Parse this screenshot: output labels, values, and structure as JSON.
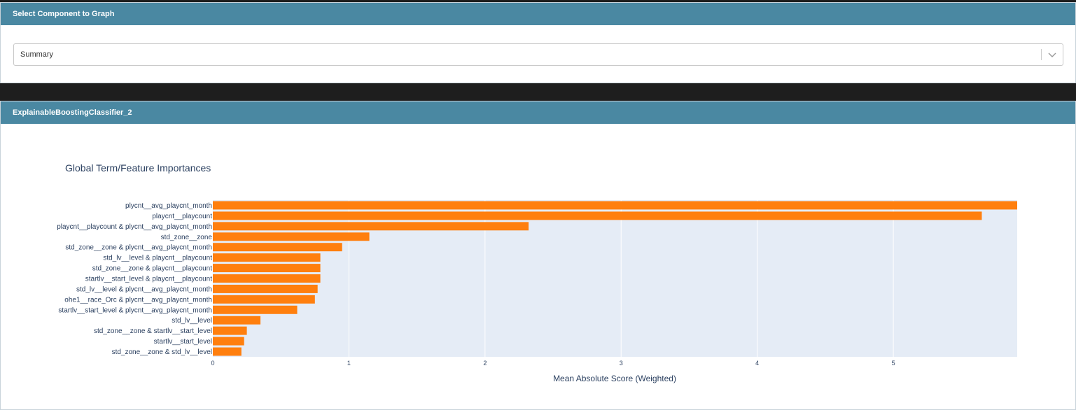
{
  "select_panel": {
    "title": "Select Component to Graph",
    "dropdown": {
      "selected": "Summary",
      "icon": "chevron-down-icon"
    }
  },
  "chart_panel": {
    "title": "ExplainableBoostingClassifier_2"
  },
  "colors": {
    "header_bg": "#4a88a2",
    "bar": "#ff7f0e",
    "plot_bg": "#e5ecf6",
    "page_bg": "#1e1e1e"
  },
  "chart_data": {
    "type": "bar",
    "orientation": "horizontal",
    "title": "Global Term/Feature Importances",
    "xlabel": "Mean Absolute Score (Weighted)",
    "ylabel": "",
    "xlim": [
      0,
      5.91
    ],
    "xticks": [
      0,
      1,
      2,
      3,
      4,
      5
    ],
    "grid": true,
    "categories": [
      "plycnt__avg_playcnt_month",
      "playcnt__playcount",
      "playcnt__playcount & plycnt__avg_playcnt_month",
      "std_zone__zone",
      "std_zone__zone & plycnt__avg_playcnt_month",
      "std_lv__level & playcnt__playcount",
      "std_zone__zone & playcnt__playcount",
      "startlv__start_level & playcnt__playcount",
      "std_lv__level & plycnt__avg_playcnt_month",
      "ohe1__race_Orc & plycnt__avg_playcnt_month",
      "startlv__start_level & plycnt__avg_playcnt_month",
      "std_lv__level",
      "std_zone__zone & startlv__start_level",
      "startlv__start_level",
      "std_zone__zone & std_lv__level"
    ],
    "values": [
      5.91,
      5.65,
      2.32,
      1.15,
      0.95,
      0.79,
      0.79,
      0.79,
      0.77,
      0.75,
      0.62,
      0.35,
      0.25,
      0.23,
      0.21
    ]
  }
}
